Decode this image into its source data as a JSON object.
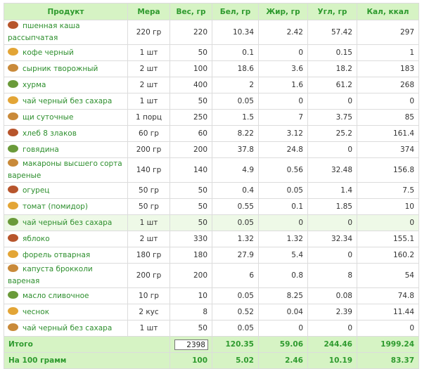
{
  "table": {
    "header": [
      "Продукт",
      "Мера",
      "Вес, гр",
      "Бел, гр",
      "Жир, гр",
      "Угл, гр",
      "Кал, ккал"
    ],
    "rows": [
      [
        "пшенная каша рассыпчатая",
        "220 гр",
        220,
        10.34,
        2.42,
        57.42,
        297
      ],
      [
        "кофе черный",
        "1 шт",
        50,
        0.1,
        0,
        0.15,
        1
      ],
      [
        "сырник творожный",
        "2 шт",
        100,
        18.6,
        3.6,
        18.2,
        183
      ],
      [
        "хурма",
        "2 шт",
        400,
        2,
        1.6,
        61.2,
        268
      ],
      [
        "чай черный без сахара",
        "1 шт",
        50,
        0.05,
        0,
        0,
        0
      ],
      [
        "щи суточные",
        "1 порц",
        250,
        1.5,
        7,
        3.75,
        85
      ],
      [
        "хлеб 8 злаков",
        "60 гр",
        60,
        8.22,
        3.12,
        25.2,
        161.4
      ],
      [
        "говядина",
        "200 гр",
        200,
        37.8,
        24.8,
        0,
        374
      ],
      [
        "макароны высшего сорта вареные",
        "140 гр",
        140,
        4.9,
        0.56,
        32.48,
        156.8
      ],
      [
        "огурец",
        "50 гр",
        50,
        0.4,
        0.05,
        1.4,
        7.5
      ],
      [
        "томат (помидор)",
        "50 гр",
        50,
        0.55,
        0.1,
        1.85,
        10
      ],
      [
        "чай черный без сахара",
        "1 шт",
        50,
        0.05,
        0,
        0,
        0
      ],
      [
        "яблоко",
        "2 шт",
        330,
        1.32,
        1.32,
        32.34,
        155.1
      ],
      [
        "форель отварная",
        "180 гр",
        180,
        27.9,
        5.4,
        0,
        160.2
      ],
      [
        "капуста брокколи вареная",
        "200 гр",
        200,
        6,
        0.8,
        8,
        54
      ],
      [
        "масло сливочное",
        "10 гр",
        10,
        0.05,
        8.25,
        0.08,
        74.8
      ],
      [
        "чеснок",
        "2 кус",
        8,
        0.52,
        0.04,
        2.39,
        11.44
      ],
      [
        "чай черный без сахара",
        "1 шт",
        50,
        0.05,
        0,
        0,
        0
      ]
    ],
    "highlighted_row": 11,
    "totals": [
      {
        "label": "Итого",
        "values": [
          2398,
          120.35,
          59.06,
          244.46,
          1999.24
        ]
      },
      {
        "label": "На 100 грамм",
        "values": [
          100,
          5.02,
          2.46,
          10.19,
          83.37
        ]
      }
    ]
  }
}
